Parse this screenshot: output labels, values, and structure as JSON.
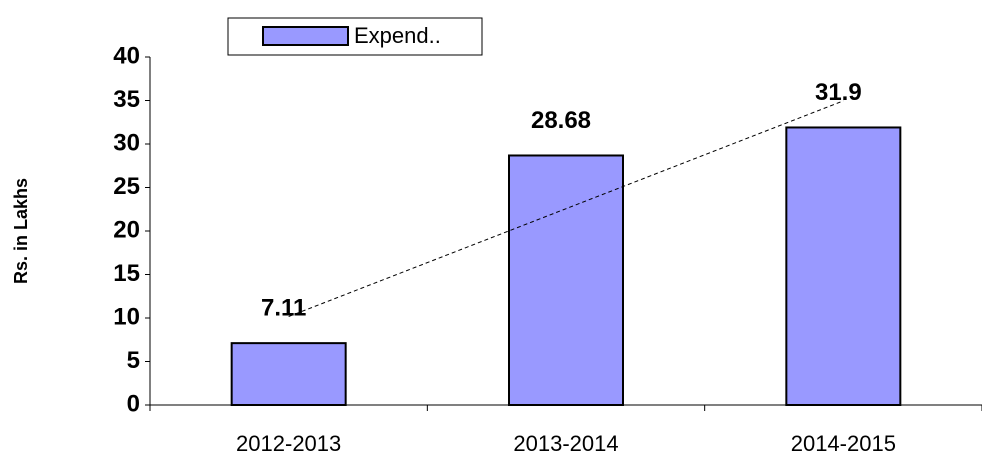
{
  "chart_data": {
    "type": "bar",
    "y_label": "Rs. in Lakhs",
    "categories": [
      "2012-2013",
      "2013-2014",
      "2014-2015"
    ],
    "series": [
      {
        "name": "Expend..",
        "color": "#9999ff",
        "values": [
          7.11,
          28.68,
          31.9
        ]
      }
    ],
    "ylim": [
      0,
      40
    ],
    "yticks": [
      0,
      5,
      10,
      15,
      20,
      25,
      30,
      35,
      40
    ],
    "trendline": "linear",
    "legend": "top"
  }
}
